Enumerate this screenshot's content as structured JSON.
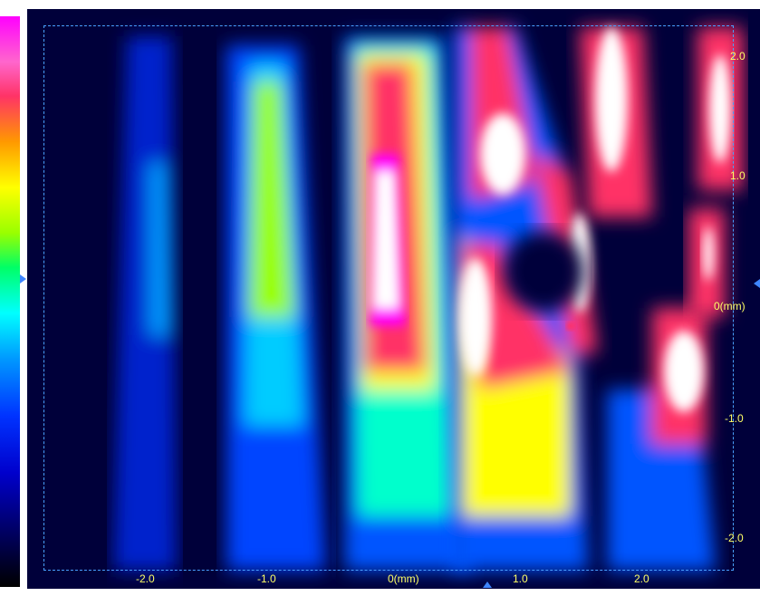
{
  "image": {
    "kind": "false-color intensity map",
    "colormap": [
      "#ff00ff",
      "#ff3366",
      "#ff9900",
      "#ffff00",
      "#00ff66",
      "#00ffff",
      "#0033ff",
      "#000066",
      "#000000"
    ]
  },
  "x_axis": {
    "labels": [
      "-2.0",
      "-1.0",
      "0(mm)",
      "1.0",
      "2.0"
    ]
  },
  "y_axis": {
    "labels": [
      "2.0",
      "1.0",
      "0(mm)",
      "-1.0",
      "-2.0"
    ],
    "center_label": "0(mm)"
  }
}
